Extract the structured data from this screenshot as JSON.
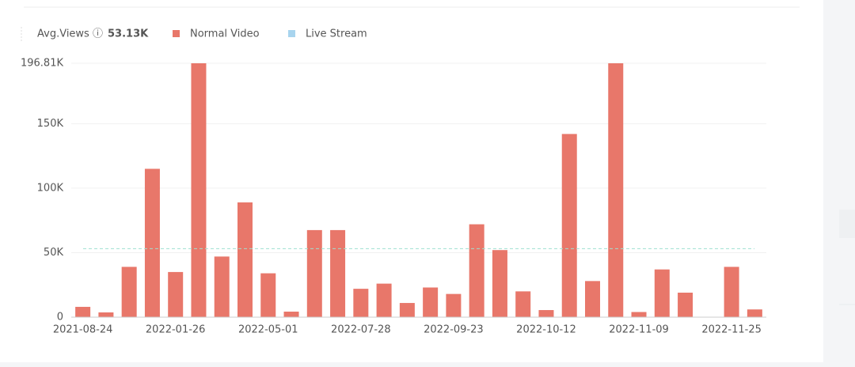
{
  "chart_data": {
    "type": "bar",
    "average": {
      "name": "Avg.Views",
      "value": 53130,
      "value_label": "53.13K",
      "color": "#9fe0d0"
    },
    "categories": [
      "2021-08-24",
      null,
      null,
      null,
      "2022-01-26",
      null,
      null,
      null,
      "2022-05-01",
      null,
      null,
      null,
      "2022-07-28",
      null,
      null,
      null,
      "2022-09-23",
      null,
      null,
      null,
      "2022-10-12",
      null,
      null,
      null,
      "2022-11-09",
      null,
      null,
      null,
      "2022-11-25",
      null
    ],
    "series": [
      {
        "name": "Normal Video",
        "color": "#e8776a",
        "values": [
          8000,
          3700,
          39000,
          115000,
          35000,
          196810,
          47000,
          89000,
          34000,
          4300,
          67500,
          67500,
          22000,
          26000,
          11000,
          23000,
          18000,
          72000,
          52000,
          20000,
          5500,
          142000,
          28000,
          196810,
          4000,
          37000,
          19000,
          0,
          39000,
          6000
        ]
      },
      {
        "name": "Live Stream",
        "color": "#a8d4ee",
        "values": [
          null,
          null,
          null,
          null,
          null,
          null,
          null,
          null,
          null,
          null,
          null,
          null,
          null,
          null,
          null,
          null,
          null,
          null,
          null,
          null,
          null,
          null,
          null,
          null,
          null,
          null,
          null,
          null,
          null,
          null
        ]
      }
    ],
    "ylim": [
      0,
      196810
    ],
    "yticks": [
      0,
      {
        "value": 50000,
        "label": "50K"
      },
      {
        "value": 100000,
        "label": "100K"
      },
      {
        "value": 150000,
        "label": "150K"
      },
      {
        "value": 196810,
        "label": "196.81K"
      }
    ],
    "grid": true
  }
}
